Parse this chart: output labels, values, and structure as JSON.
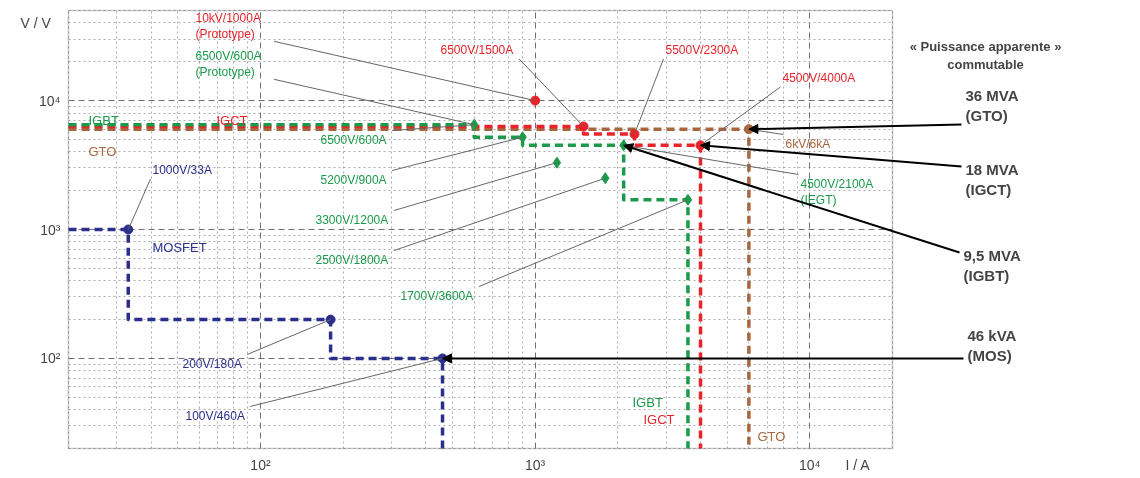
{
  "chart_data": {
    "type": "line",
    "xlabel": "I / A",
    "ylabel": "V / V",
    "log": "xy",
    "grid": true,
    "xlim": [
      20,
      20000
    ],
    "ylim": [
      20,
      50000
    ],
    "xticks": [
      {
        "value": 100,
        "label": "10²"
      },
      {
        "value": 1000,
        "label": "10³"
      },
      {
        "value": 10000,
        "label": "10⁴"
      }
    ],
    "yticks": [
      {
        "value": 100,
        "label": "10²"
      },
      {
        "value": 1000,
        "label": "10³"
      },
      {
        "value": 10000,
        "label": "10⁴"
      }
    ],
    "series": [
      {
        "name": "GTO",
        "color": "#a8663f",
        "x": [
          20,
          6000,
          6000
        ],
        "values": [
          6000,
          6000,
          20
        ],
        "marker": "none",
        "line_style": "dashed"
      },
      {
        "name": "IGCT",
        "color": "#e8232a",
        "x": [
          20,
          1500,
          1500,
          2300,
          2300,
          4000,
          4000
        ],
        "values": [
          6300,
          6300,
          5500,
          5500,
          4500,
          4500,
          20
        ],
        "marker": "none",
        "line_style": "dashed"
      },
      {
        "name": "IGBT",
        "color": "#1a9a4a",
        "x": [
          20,
          600,
          600,
          900,
          900,
          2100,
          2100,
          3600,
          3600
        ],
        "values": [
          6500,
          6500,
          5200,
          5200,
          4500,
          4500,
          1700,
          1700,
          20
        ],
        "marker": "none",
        "line_style": "dashed"
      },
      {
        "name": "MOSFET",
        "color": "#2b2f8c",
        "x": [
          20,
          33,
          33,
          180,
          180,
          460,
          460
        ],
        "values": [
          1000,
          1000,
          200,
          200,
          100,
          100,
          20
        ],
        "marker": "none",
        "line_style": "dashed"
      },
      {
        "type": "scatter",
        "color": "#a8663f",
        "x": [
          6000
        ],
        "values": [
          6000
        ],
        "marker": "circle"
      },
      {
        "type": "scatter",
        "color": "#e8232a",
        "x": [
          1000,
          1500,
          2300,
          4000
        ],
        "values": [
          10000,
          6300,
          5500,
          4500
        ],
        "marker": "circle"
      },
      {
        "type": "scatter",
        "color": "#1a9a4a",
        "x": [
          600,
          900,
          1200,
          1800,
          2100,
          3600
        ],
        "values": [
          6500,
          5200,
          3300,
          2500,
          4500,
          1700
        ],
        "marker": "diamond"
      },
      {
        "type": "scatter",
        "color": "#2b2f8c",
        "x": [
          33,
          180,
          460
        ],
        "values": [
          1000,
          200,
          100
        ],
        "marker": "circle"
      }
    ],
    "annotations": [
      {
        "text": "10kV/1000A\n(Prototype)",
        "x": 1000,
        "y": 10000
      },
      {
        "text": "6500V/600A\n(Prototype)",
        "x": 600,
        "y": 6500
      },
      {
        "text": "6500V/1500A",
        "x": 1500,
        "y": 6300
      },
      {
        "text": "5500V/2300A",
        "x": 2300,
        "y": 5500
      },
      {
        "text": "4500V/4000A",
        "x": 4000,
        "y": 4500
      },
      {
        "text": "6kV/6kA",
        "x": 6000,
        "y": 6000
      },
      {
        "text": "4500V/2100A\n(IEGT)",
        "x": 2100,
        "y": 4500
      },
      {
        "text": "6500V/600A",
        "x": 600,
        "y": 6500
      },
      {
        "text": "5200V/900A",
        "x": 900,
        "y": 5200
      },
      {
        "text": "3300V/1200A",
        "x": 1200,
        "y": 3300
      },
      {
        "text": "2500V/1800A",
        "x": 1800,
        "y": 2500
      },
      {
        "text": "1700V/3600A",
        "x": 3600,
        "y": 1700
      },
      {
        "text": "1000V/33A",
        "x": 33,
        "y": 1000
      },
      {
        "text": "200V/180A",
        "x": 180,
        "y": 200
      },
      {
        "text": "100V/460A",
        "x": 460,
        "y": 100
      },
      "« Puissance apparente »\ncommutable",
      {
        "text": "36 MVA\n(GTO)",
        "x": 6000,
        "y": 6000
      },
      {
        "text": "18 MVA\n(IGCT)",
        "x": 4000,
        "y": 4500
      },
      {
        "text": "9,5 MVA\n(IGBT)",
        "x": 2100,
        "y": 4500
      },
      {
        "text": "46 kVA\n(MOS)",
        "x": 460,
        "y": 100
      }
    ]
  }
}
